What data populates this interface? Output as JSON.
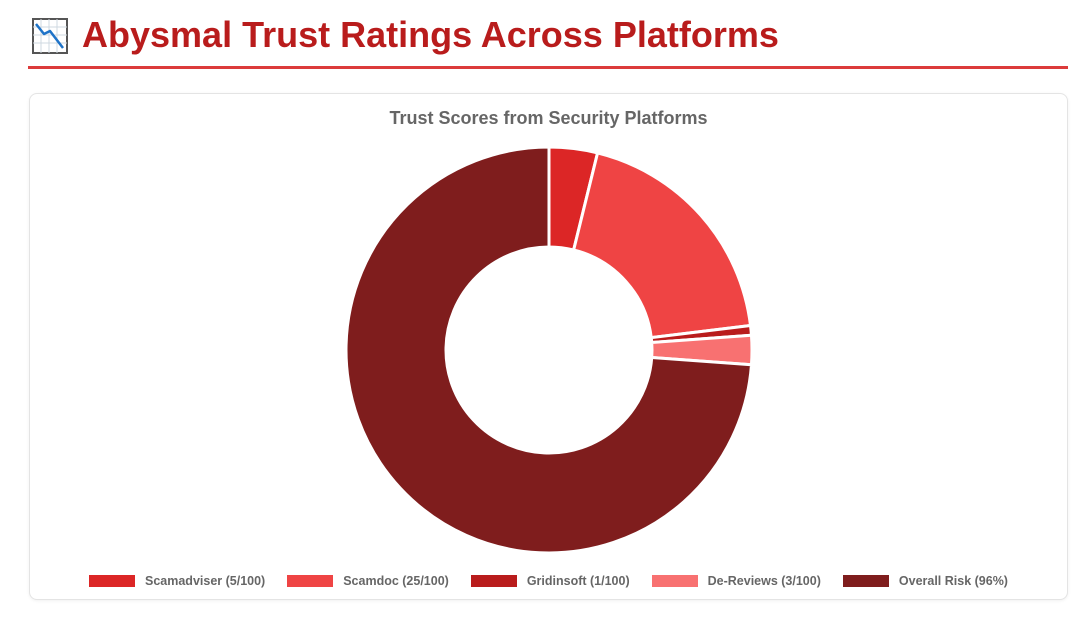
{
  "header": {
    "title": "Abysmal Trust Ratings Across Platforms",
    "icon": "chart-decreasing-icon"
  },
  "chart_data": {
    "type": "doughnut",
    "title": "Trust Scores from Security Platforms",
    "series": [
      {
        "name": "Scamadviser (5/100)",
        "value": 5,
        "color": "#dc2626"
      },
      {
        "name": "Scamdoc (25/100)",
        "value": 25,
        "color": "#ef4444"
      },
      {
        "name": "Gridinsoft (1/100)",
        "value": 1,
        "color": "#b91c1c"
      },
      {
        "name": "De-Reviews (3/100)",
        "value": 3,
        "color": "#f87171"
      },
      {
        "name": "Overall Risk (96%)",
        "value": 96,
        "color": "#7f1d1d"
      }
    ],
    "legend_position": "bottom"
  }
}
